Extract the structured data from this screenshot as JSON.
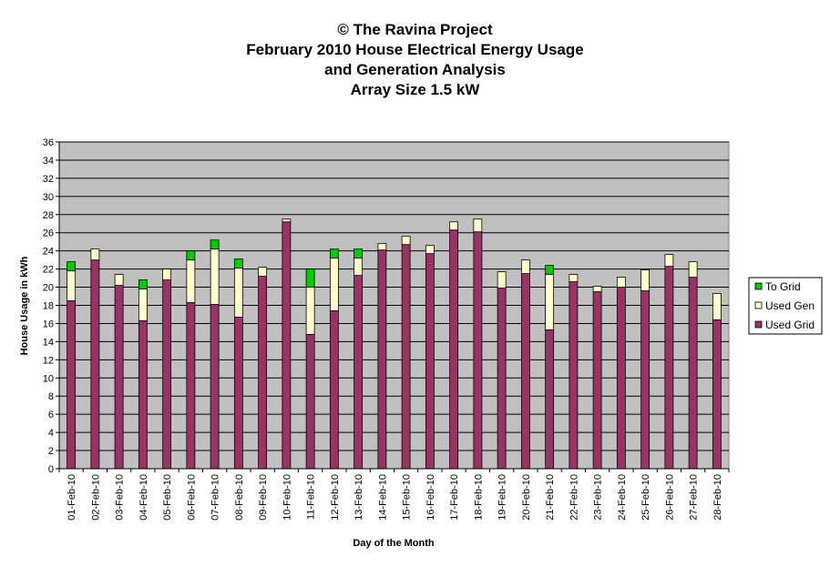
{
  "title_lines": [
    "© The Ravina Project",
    "February 2010 House Electrical Energy Usage",
    "and Generation Analysis",
    "Array Size 1.5 kW"
  ],
  "chart_data": {
    "type": "bar",
    "stacked": true,
    "xlabel": "Day of the Month",
    "ylabel": "House Usage in kWh",
    "ylim": [
      0,
      36
    ],
    "ytick_step": 2,
    "grid": true,
    "legend_position": "right",
    "categories": [
      "01-Feb-10",
      "02-Feb-10",
      "03-Feb-10",
      "04-Feb-10",
      "05-Feb-10",
      "06-Feb-10",
      "07-Feb-10",
      "08-Feb-10",
      "09-Feb-10",
      "10-Feb-10",
      "11-Feb-10",
      "12-Feb-10",
      "13-Feb-10",
      "14-Feb-10",
      "15-Feb-10",
      "16-Feb-10",
      "17-Feb-10",
      "18-Feb-10",
      "19-Feb-10",
      "20-Feb-10",
      "21-Feb-10",
      "22-Feb-10",
      "23-Feb-10",
      "24-Feb-10",
      "25-Feb-10",
      "26-Feb-10",
      "27-Feb-10",
      "28-Feb-10"
    ],
    "series": [
      {
        "name": "Used Grid",
        "color": "#993366",
        "values": [
          18.5,
          23.0,
          20.2,
          16.3,
          20.8,
          18.3,
          18.1,
          16.7,
          21.2,
          27.2,
          14.8,
          17.4,
          21.3,
          24.1,
          24.7,
          23.7,
          26.3,
          26.1,
          19.9,
          21.5,
          15.3,
          20.6,
          19.5,
          20.0,
          19.6,
          22.3,
          21.1,
          16.4
        ]
      },
      {
        "name": "Used Gen",
        "color": "#FFFFCC",
        "values": [
          3.3,
          1.2,
          1.2,
          3.5,
          1.2,
          4.7,
          6.1,
          5.4,
          1.0,
          0.3,
          5.2,
          5.8,
          1.9,
          0.7,
          0.9,
          0.9,
          0.9,
          1.4,
          1.8,
          1.5,
          6.1,
          0.8,
          0.6,
          1.1,
          2.3,
          1.3,
          1.7,
          2.9
        ]
      },
      {
        "name": "To Grid",
        "color": "#00CC00",
        "values": [
          1.0,
          0,
          0,
          1.0,
          0,
          1.0,
          1.0,
          1.0,
          0,
          0,
          2.0,
          1.0,
          1.0,
          0,
          0,
          0,
          0,
          0,
          0,
          0,
          1.0,
          0,
          0,
          0,
          0,
          0,
          0,
          0
        ]
      }
    ]
  }
}
